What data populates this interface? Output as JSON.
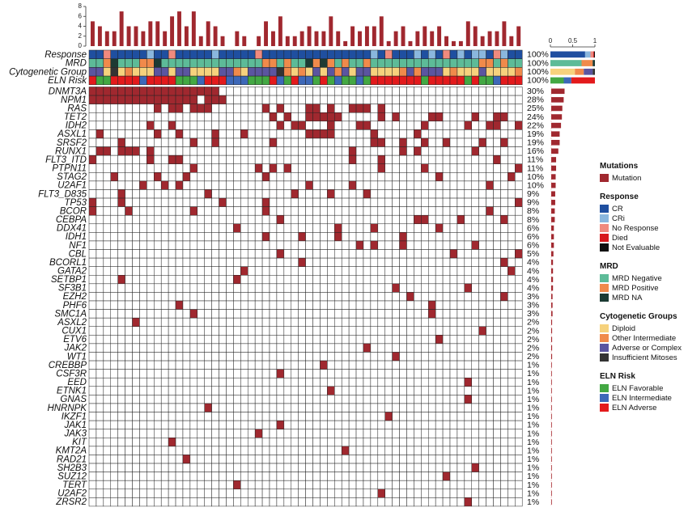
{
  "chart_data": {
    "type": "heatmap",
    "n_samples": 60,
    "top_bar": {
      "yticks": [
        "0",
        "2",
        "4",
        "6",
        "8"
      ],
      "ylim": [
        0,
        8
      ]
    },
    "side_bar": {
      "xticks": [
        "0",
        "0.5",
        "1"
      ],
      "xlim": [
        0,
        1
      ]
    },
    "annotation_rows": [
      {
        "name": "Response",
        "pct": "100%"
      },
      {
        "name": "MRD",
        "pct": "100%"
      },
      {
        "name": "Cytogenetic Group",
        "pct": "100%"
      },
      {
        "name": "ELN Risk",
        "pct": "100%"
      }
    ],
    "annotation_side": [
      [
        {
          "c": "#1f4fa0",
          "f": 0.78
        },
        {
          "c": "#8ab7de",
          "f": 0.12
        },
        {
          "c": "#f08a7e",
          "f": 0.06
        },
        {
          "c": "#d7191c",
          "f": 0.02
        },
        {
          "c": "#111111",
          "f": 0.02
        }
      ],
      [
        {
          "c": "#5dbb98",
          "f": 0.7
        },
        {
          "c": "#f08a4b",
          "f": 0.25
        },
        {
          "c": "#1c3a33",
          "f": 0.05
        }
      ],
      [
        {
          "c": "#f6d27d",
          "f": 0.55
        },
        {
          "c": "#f08a4b",
          "f": 0.2
        },
        {
          "c": "#5b55a0",
          "f": 0.2
        },
        {
          "c": "#333333",
          "f": 0.05
        }
      ],
      [
        {
          "c": "#43a843",
          "f": 0.3
        },
        {
          "c": "#3d68b8",
          "f": 0.17
        },
        {
          "c": "#e31a1c",
          "f": 0.53
        }
      ]
    ],
    "genes": [
      {
        "name": "DNMT3A",
        "pct": "30%",
        "value": 0.3
      },
      {
        "name": "NPM1",
        "pct": "28%",
        "value": 0.28
      },
      {
        "name": "RAS",
        "pct": "25%",
        "value": 0.25
      },
      {
        "name": "TET2",
        "pct": "24%",
        "value": 0.24
      },
      {
        "name": "IDH2",
        "pct": "22%",
        "value": 0.22
      },
      {
        "name": "ASXL1",
        "pct": "19%",
        "value": 0.19
      },
      {
        "name": "SRSF2",
        "pct": "19%",
        "value": 0.19
      },
      {
        "name": "RUNX1",
        "pct": "16%",
        "value": 0.16
      },
      {
        "name": "FLT3_ITD",
        "pct": "11%",
        "value": 0.11
      },
      {
        "name": "PTPN11",
        "pct": "11%",
        "value": 0.11
      },
      {
        "name": "STAG2",
        "pct": "10%",
        "value": 0.1
      },
      {
        "name": "U2AF1",
        "pct": "10%",
        "value": 0.1
      },
      {
        "name": "FLT3_D835",
        "pct": "9%",
        "value": 0.09
      },
      {
        "name": "TP53",
        "pct": "9%",
        "value": 0.09
      },
      {
        "name": "BCOR",
        "pct": "8%",
        "value": 0.08
      },
      {
        "name": "CEBPA",
        "pct": "8%",
        "value": 0.08
      },
      {
        "name": "DDX41",
        "pct": "6%",
        "value": 0.06
      },
      {
        "name": "IDH1",
        "pct": "6%",
        "value": 0.06
      },
      {
        "name": "NF1",
        "pct": "6%",
        "value": 0.06
      },
      {
        "name": "CBL",
        "pct": "5%",
        "value": 0.05
      },
      {
        "name": "BCORL1",
        "pct": "4%",
        "value": 0.04
      },
      {
        "name": "GATA2",
        "pct": "4%",
        "value": 0.04
      },
      {
        "name": "SETBP1",
        "pct": "4%",
        "value": 0.04
      },
      {
        "name": "SF3B1",
        "pct": "4%",
        "value": 0.04
      },
      {
        "name": "EZH2",
        "pct": "3%",
        "value": 0.03
      },
      {
        "name": "PHF6",
        "pct": "3%",
        "value": 0.03
      },
      {
        "name": "SMC1A",
        "pct": "3%",
        "value": 0.03
      },
      {
        "name": "ASXL2",
        "pct": "2%",
        "value": 0.02
      },
      {
        "name": "CUX1",
        "pct": "2%",
        "value": 0.02
      },
      {
        "name": "ETV6",
        "pct": "2%",
        "value": 0.02
      },
      {
        "name": "JAK2",
        "pct": "2%",
        "value": 0.02
      },
      {
        "name": "WT1",
        "pct": "2%",
        "value": 0.02
      },
      {
        "name": "CREBBP",
        "pct": "1%",
        "value": 0.01
      },
      {
        "name": "CSF3R",
        "pct": "1%",
        "value": 0.01
      },
      {
        "name": "EED",
        "pct": "1%",
        "value": 0.01
      },
      {
        "name": "ETNK1",
        "pct": "1%",
        "value": 0.01
      },
      {
        "name": "GNAS",
        "pct": "1%",
        "value": 0.01
      },
      {
        "name": "HNRNPK",
        "pct": "1%",
        "value": 0.01
      },
      {
        "name": "IKZF1",
        "pct": "1%",
        "value": 0.01
      },
      {
        "name": "JAK1",
        "pct": "1%",
        "value": 0.01
      },
      {
        "name": "JAK3",
        "pct": "1%",
        "value": 0.01
      },
      {
        "name": "KIT",
        "pct": "1%",
        "value": 0.01
      },
      {
        "name": "KMT2A",
        "pct": "1%",
        "value": 0.01
      },
      {
        "name": "RAD21",
        "pct": "1%",
        "value": 0.01
      },
      {
        "name": "SH2B3",
        "pct": "1%",
        "value": 0.01
      },
      {
        "name": "SUZ12",
        "pct": "1%",
        "value": 0.01
      },
      {
        "name": "TERT",
        "pct": "1%",
        "value": 0.01
      },
      {
        "name": "U2AF2",
        "pct": "1%",
        "value": 0.01
      },
      {
        "name": "ZRSR2",
        "pct": "1%",
        "value": 0.01
      }
    ],
    "colors": {
      "mutation": "#a0282f",
      "grid_line": "#222222",
      "cell_bg": "#ffffff"
    }
  },
  "legend": [
    {
      "title": "Mutations",
      "items": [
        {
          "label": "Mutation",
          "color": "#a0282f"
        }
      ]
    },
    {
      "title": "Response",
      "items": [
        {
          "label": "CR",
          "color": "#1f4fa0"
        },
        {
          "label": "CRi",
          "color": "#8ab7de"
        },
        {
          "label": "No Response",
          "color": "#f08a7e"
        },
        {
          "label": "Died",
          "color": "#d7191c"
        },
        {
          "label": "Not Evaluable",
          "color": "#111111"
        }
      ]
    },
    {
      "title": "MRD",
      "items": [
        {
          "label": "MRD Negative",
          "color": "#5dbb98"
        },
        {
          "label": "MRD Positive",
          "color": "#f08a4b"
        },
        {
          "label": "MRD NA",
          "color": "#1c3a33"
        }
      ]
    },
    {
      "title": "Cytogenetic Groups",
      "items": [
        {
          "label": "Diploid",
          "color": "#f6d27d"
        },
        {
          "label": "Other Intermediate",
          "color": "#f08a4b"
        },
        {
          "label": "Adverse or Complex",
          "color": "#5b55a0"
        },
        {
          "label": "Insufficient Mitoses",
          "color": "#333333"
        }
      ]
    },
    {
      "title": "ELN Risk",
      "items": [
        {
          "label": "ELN Favorable",
          "color": "#43a843"
        },
        {
          "label": "ELN Intermediate",
          "color": "#3d68b8"
        },
        {
          "label": "ELN Adverse",
          "color": "#e31a1c"
        }
      ]
    }
  ]
}
